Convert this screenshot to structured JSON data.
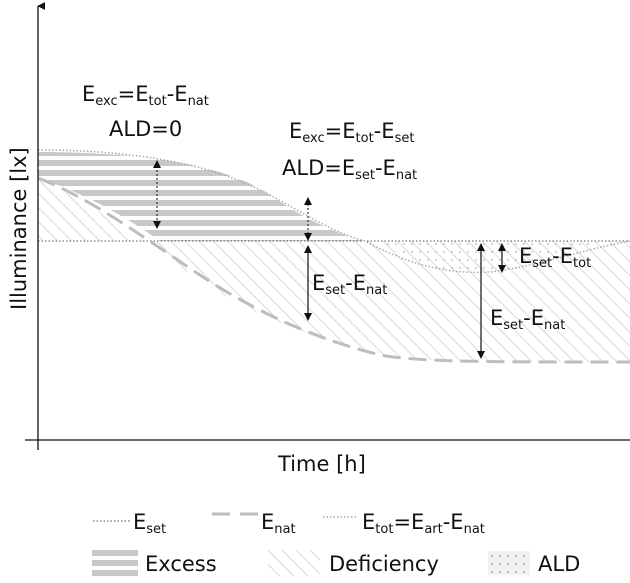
{
  "axes": {
    "ylabel": "Illuminance [lx]",
    "xlabel": "Time [h]"
  },
  "annotations": {
    "left_formula": {
      "a": "E",
      "a_sub": "exc",
      "b": "=E",
      "b_sub": "tot",
      "c": "-E",
      "c_sub": "nat"
    },
    "left_ald": "ALD=0",
    "mid_formula": {
      "a": "E",
      "a_sub": "exc",
      "b": "=E",
      "b_sub": "tot",
      "c": "-E",
      "c_sub": "set"
    },
    "mid_ald": {
      "a": "ALD=E",
      "a_sub": "set",
      "b": "-E",
      "b_sub": "nat"
    },
    "mid_gap": {
      "a": "E",
      "a_sub": "set",
      "b": "-E",
      "b_sub": "nat"
    },
    "right_small_gap": {
      "a": "E",
      "a_sub": "set",
      "b": "-E",
      "b_sub": "tot"
    },
    "right_big_gap": {
      "a": "E",
      "a_sub": "set",
      "b": "-E",
      "b_sub": "nat"
    }
  },
  "legend": {
    "row1": [
      {
        "main": "E",
        "sub": "set",
        "style": "dotted-dark"
      },
      {
        "main": "E",
        "sub": "nat",
        "style": "dashed-grey"
      },
      {
        "main": "E",
        "sub": "tot",
        "rest1": "=E",
        "rest1_sub": "art",
        "rest2": "-E",
        "rest2_sub": "nat",
        "style": "dotted-grey"
      }
    ],
    "row2": [
      {
        "label": "Excess",
        "pattern": "horizontal-stripes"
      },
      {
        "label": "Deficiency",
        "pattern": "diagonal-hatch"
      },
      {
        "label": "ALD",
        "pattern": "dotted"
      }
    ]
  },
  "colors": {
    "axis": "#111111",
    "set_line": "#555555",
    "nat_line": "#bdbdbd",
    "tot_line": "#aaaaaa",
    "excess_stripe": "#c8c8c8",
    "hatch": "#c4c4c4"
  }
}
